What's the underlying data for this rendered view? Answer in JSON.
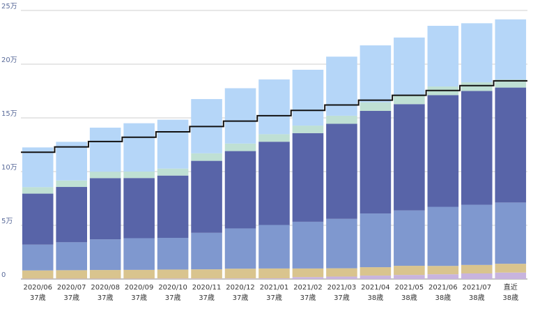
{
  "chart_data": {
    "type": "bar",
    "stacked": true,
    "categories": [
      "2020/06",
      "2020/07",
      "2020/08",
      "2020/09",
      "2020/10",
      "2020/11",
      "2020/12",
      "2021/01",
      "2021/02",
      "2021/03",
      "2021/04",
      "2021/05",
      "2021/06",
      "2021/07",
      "直近"
    ],
    "ages": [
      "37歳",
      "37歳",
      "37歳",
      "37歳",
      "37歳",
      "37歳",
      "37歳",
      "37歳",
      "37歳",
      "37歳",
      "38歳",
      "38歳",
      "38歳",
      "38歳",
      "38歳"
    ],
    "y_ticks": [
      {
        "value": 0,
        "label": "0"
      },
      {
        "value": 50000,
        "label": "5万"
      },
      {
        "value": 100000,
        "label": "10万"
      },
      {
        "value": 150000,
        "label": "15万"
      },
      {
        "value": 200000,
        "label": "20万"
      },
      {
        "value": 250000,
        "label": "25万"
      }
    ],
    "ylim": [
      0,
      250000
    ],
    "grid": true,
    "series": [
      {
        "color": "#c8b4de",
        "values": [
          300,
          300,
          300,
          300,
          400,
          400,
          500,
          600,
          1800,
          2300,
          3200,
          3800,
          4400,
          5200,
          6000
        ]
      },
      {
        "color": "#d9c48e",
        "values": [
          7700,
          7900,
          8100,
          8200,
          8400,
          8600,
          9100,
          9200,
          8000,
          7700,
          7800,
          8500,
          7800,
          7900,
          8200
        ]
      },
      {
        "color": "#7f98cf",
        "values": [
          24000,
          26000,
          28500,
          29500,
          29500,
          34000,
          37500,
          40500,
          43500,
          46000,
          50000,
          51500,
          55000,
          56000,
          57000
        ]
      },
      {
        "color": "#5864a8",
        "values": [
          47500,
          51500,
          57000,
          56000,
          58000,
          67000,
          72000,
          77500,
          82500,
          88500,
          95500,
          99000,
          104000,
          106000,
          107000
        ]
      },
      {
        "color": "#bfe0d4",
        "values": [
          6000,
          6000,
          6000,
          6000,
          6500,
          7000,
          7000,
          7000,
          7000,
          7500,
          8000,
          8000,
          8000,
          8000,
          7500
        ]
      },
      {
        "color": "#b5d6f8",
        "values": [
          37000,
          36000,
          41000,
          45000,
          45500,
          50500,
          51500,
          51000,
          52000,
          55000,
          53000,
          54000,
          56500,
          55000,
          56000
        ]
      }
    ],
    "line": {
      "color": "#111111",
      "values": [
        118000,
        123000,
        128000,
        132000,
        137000,
        142000,
        147000,
        152000,
        157000,
        162000,
        166500,
        171000,
        175500,
        180000,
        184500
      ]
    }
  }
}
